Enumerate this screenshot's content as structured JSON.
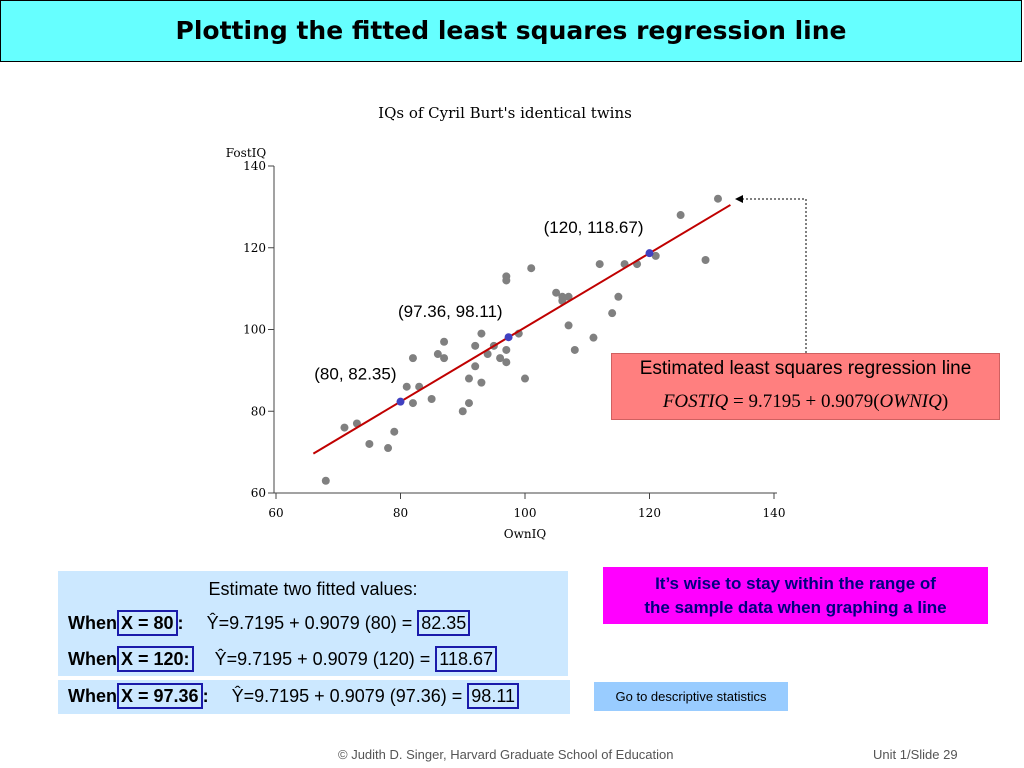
{
  "slide": {
    "title": "Plotting the fitted least squares regression line",
    "footer_left": "© Judith D. Singer, Harvard Graduate School of Education",
    "footer_right": "Unit 1/Slide 29"
  },
  "chart_data": {
    "type": "scatter",
    "title": "IQs of Cyril Burt's identical twins",
    "xlabel": "OwnIQ",
    "ylabel": "FostIQ",
    "xlim": [
      60,
      140
    ],
    "ylim": [
      60,
      140
    ],
    "xticks": [
      60,
      80,
      100,
      120,
      140
    ],
    "yticks": [
      60,
      80,
      100,
      120,
      140
    ],
    "grid": false,
    "points": [
      {
        "x": 68,
        "y": 63
      },
      {
        "x": 71,
        "y": 76
      },
      {
        "x": 73,
        "y": 77
      },
      {
        "x": 75,
        "y": 72
      },
      {
        "x": 78,
        "y": 71
      },
      {
        "x": 79,
        "y": 75
      },
      {
        "x": 81,
        "y": 86
      },
      {
        "x": 82,
        "y": 82
      },
      {
        "x": 82,
        "y": 93
      },
      {
        "x": 83,
        "y": 86
      },
      {
        "x": 85,
        "y": 83
      },
      {
        "x": 86,
        "y": 94
      },
      {
        "x": 87,
        "y": 93
      },
      {
        "x": 87,
        "y": 97
      },
      {
        "x": 90,
        "y": 80
      },
      {
        "x": 91,
        "y": 82
      },
      {
        "x": 91,
        "y": 88
      },
      {
        "x": 92,
        "y": 91
      },
      {
        "x": 92,
        "y": 96
      },
      {
        "x": 93,
        "y": 87
      },
      {
        "x": 93,
        "y": 99
      },
      {
        "x": 94,
        "y": 94
      },
      {
        "x": 95,
        "y": 96
      },
      {
        "x": 96,
        "y": 93
      },
      {
        "x": 97,
        "y": 92
      },
      {
        "x": 97,
        "y": 95
      },
      {
        "x": 97,
        "y": 112
      },
      {
        "x": 97,
        "y": 113
      },
      {
        "x": 99,
        "y": 99
      },
      {
        "x": 100,
        "y": 88
      },
      {
        "x": 101,
        "y": 115
      },
      {
        "x": 105,
        "y": 109
      },
      {
        "x": 106,
        "y": 107
      },
      {
        "x": 106,
        "y": 108
      },
      {
        "x": 107,
        "y": 101
      },
      {
        "x": 107,
        "y": 108
      },
      {
        "x": 108,
        "y": 95
      },
      {
        "x": 111,
        "y": 98
      },
      {
        "x": 112,
        "y": 116
      },
      {
        "x": 114,
        "y": 104
      },
      {
        "x": 115,
        "y": 108
      },
      {
        "x": 116,
        "y": 116
      },
      {
        "x": 118,
        "y": 116
      },
      {
        "x": 121,
        "y": 118
      },
      {
        "x": 125,
        "y": 128
      },
      {
        "x": 129,
        "y": 117
      },
      {
        "x": 131,
        "y": 132
      }
    ],
    "regression": {
      "intercept": 9.7195,
      "slope": 0.9079,
      "x_range": [
        66,
        133
      ]
    },
    "highlighted_points": [
      {
        "x": 80,
        "y": 82.35,
        "label": "(80, 82.35)"
      },
      {
        "x": 97.36,
        "y": 98.11,
        "label": "(97.36, 98.11)"
      },
      {
        "x": 120,
        "y": 118.67,
        "label": "(120, 118.67)"
      }
    ],
    "colors": {
      "points": "#808080",
      "line": "#c00000",
      "highlight": "#4040c0"
    }
  },
  "callout": {
    "title": "Estimated least squares regression line",
    "eq_lhs": "FOSTIQ",
    "eq_rhs_1": " = 9.7195 + 0.9079(",
    "eq_var": "OWNIQ",
    "eq_rhs_2": ")"
  },
  "note": {
    "line1": "It’s wise to stay within the range of",
    "line2": "the sample data when graphing a line"
  },
  "estimates": {
    "heading": "Estimate two fitted values:",
    "rows": [
      {
        "when": "When",
        "x_label": "X = 80",
        "sep": ":",
        "formula": "Ŷ=9.7195 + 0.9079 (80) =",
        "result": "82.35"
      },
      {
        "when": "When",
        "x_label": "X = 120:",
        "sep": "",
        "formula": "Ŷ=9.7195 + 0.9079 (120) =",
        "result": "118.67"
      },
      {
        "when": "When",
        "x_label": "X = 97.36",
        "sep": ":",
        "formula": "Ŷ=9.7195 + 0.9079 (97.36) =",
        "result": "98.11"
      }
    ]
  },
  "nav": {
    "descriptive_link": "Go to descriptive statistics"
  }
}
